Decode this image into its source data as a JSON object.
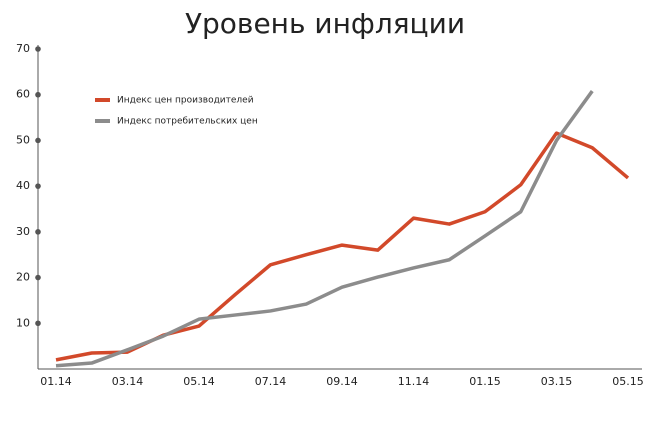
{
  "chart_data": {
    "type": "line",
    "title": "Уровень инфляции",
    "categories": [
      "01.14",
      null,
      "03.14",
      null,
      "05.14",
      null,
      "07.14",
      null,
      "09.14",
      null,
      "11.14",
      null,
      "01.15",
      null,
      "03.15",
      null,
      "05.15"
    ],
    "series": [
      {
        "name": "Индекс цен производителей",
        "color": "#d2492a",
        "values": [
          2.0,
          3.5,
          3.7,
          7.4,
          9.4,
          16.2,
          22.8,
          25.0,
          27.1,
          26.0,
          33.0,
          31.7,
          34.4,
          40.3,
          51.6,
          48.4,
          41.8
        ]
      },
      {
        "name": "Индекс потребительских цен",
        "color": "#8c8c8c",
        "values": [
          0.7,
          1.3,
          4.2,
          7.2,
          10.9,
          11.8,
          12.7,
          14.2,
          17.9,
          20.1,
          22.1,
          23.9,
          29.1,
          34.4,
          50.0,
          60.8,
          null
        ]
      }
    ],
    "ylim": [
      0,
      70
    ],
    "yticks": [
      10,
      20,
      30,
      40,
      50,
      60,
      70
    ]
  }
}
